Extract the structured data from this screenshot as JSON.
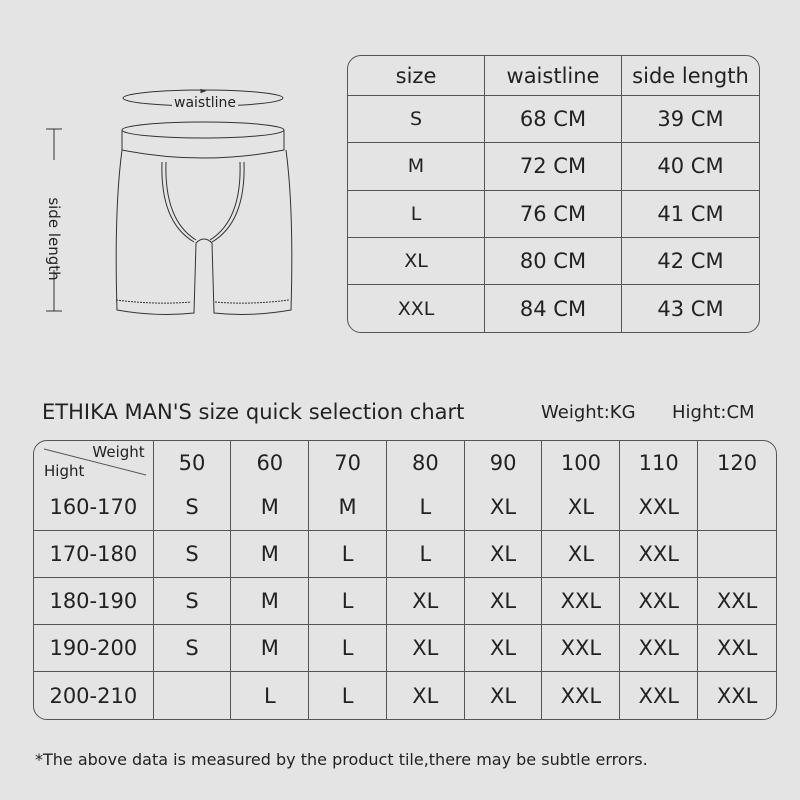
{
  "diagram": {
    "waistline_label": "waistline",
    "side_length_label": "side length"
  },
  "size_table": {
    "headers": [
      "size",
      "waistline",
      "side length"
    ],
    "rows": [
      [
        "S",
        "68 CM",
        "39 CM"
      ],
      [
        "M",
        "72 CM",
        "40 CM"
      ],
      [
        "L",
        "76 CM",
        "41 CM"
      ],
      [
        "XL",
        "80 CM",
        "42 CM"
      ],
      [
        "XXL",
        "84 CM",
        "43 CM"
      ]
    ]
  },
  "quick_chart": {
    "title": "ETHIKA MAN'S size quick selection chart",
    "weight_unit": "Weight:KG",
    "height_unit": "Hight:CM",
    "corner_weight": "Weight",
    "corner_height": "Hight",
    "weights": [
      "50",
      "60",
      "70",
      "80",
      "90",
      "100",
      "110",
      "120"
    ],
    "rows": [
      {
        "height": "160-170",
        "sizes": [
          "S",
          "M",
          "M",
          "L",
          "XL",
          "XL",
          "XXL",
          ""
        ]
      },
      {
        "height": "170-180",
        "sizes": [
          "S",
          "M",
          "L",
          "L",
          "XL",
          "XL",
          "XXL",
          ""
        ]
      },
      {
        "height": "180-190",
        "sizes": [
          "S",
          "M",
          "L",
          "XL",
          "XL",
          "XXL",
          "XXL",
          "XXL"
        ]
      },
      {
        "height": "190-200",
        "sizes": [
          "S",
          "M",
          "L",
          "XL",
          "XL",
          "XXL",
          "XXL",
          "XXL"
        ]
      },
      {
        "height": "200-210",
        "sizes": [
          "",
          "L",
          "L",
          "XL",
          "XL",
          "XXL",
          "XXL",
          "XXL"
        ]
      }
    ]
  },
  "footnote": "*The above data is measured by the product tile,there may be subtle errors."
}
